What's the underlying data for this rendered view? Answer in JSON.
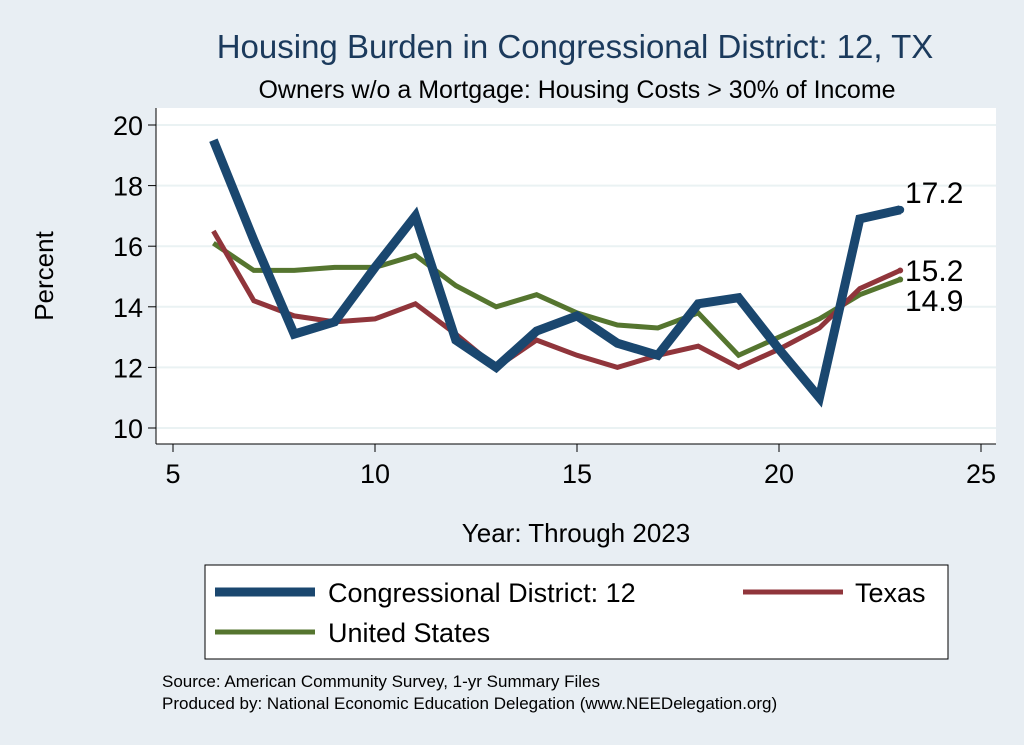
{
  "chart_data": {
    "type": "line",
    "title": "Housing Burden in Congressional District:  12, TX",
    "subtitle": "Owners w/o a Mortgage: Housing Costs > 30% of Income",
    "xlabel": "Year: Through 2023",
    "ylabel": "Percent",
    "xlim": [
      5,
      25
    ],
    "ylim": [
      10,
      20
    ],
    "xticks": [
      5,
      10,
      15,
      20,
      25
    ],
    "yticks": [
      10,
      12,
      14,
      16,
      18,
      20
    ],
    "grid": true,
    "series": [
      {
        "name": "Congressional District:  12",
        "color": "#1a476f",
        "x": [
          6,
          7,
          8,
          9,
          10,
          11,
          12,
          13,
          14,
          15,
          16,
          17,
          18,
          19,
          20,
          21,
          22,
          23
        ],
        "values": [
          19.5,
          16.2,
          13.1,
          13.5,
          15.3,
          17.0,
          12.9,
          12.0,
          13.2,
          13.7,
          12.8,
          12.4,
          14.1,
          14.3,
          12.6,
          11.0,
          16.9,
          17.2
        ],
        "end_label": "17.2"
      },
      {
        "name": "Texas",
        "color": "#90353b",
        "x": [
          6,
          7,
          8,
          9,
          10,
          11,
          12,
          13,
          14,
          15,
          16,
          17,
          18,
          19,
          20,
          21,
          22,
          23
        ],
        "values": [
          16.5,
          14.2,
          13.7,
          13.5,
          13.6,
          14.1,
          13.1,
          12.0,
          12.9,
          12.4,
          12.0,
          12.4,
          12.7,
          12.0,
          12.6,
          13.3,
          14.6,
          15.2
        ],
        "end_label": "15.2"
      },
      {
        "name": "United States",
        "color": "#55752f",
        "x": [
          6,
          7,
          8,
          9,
          10,
          11,
          12,
          13,
          14,
          15,
          16,
          17,
          18,
          19,
          20,
          21,
          22,
          23
        ],
        "values": [
          16.1,
          15.2,
          15.2,
          15.3,
          15.3,
          15.7,
          14.7,
          14.0,
          14.4,
          13.8,
          13.4,
          13.3,
          13.8,
          12.4,
          13.0,
          13.6,
          14.4,
          14.9
        ],
        "end_label": "14.9"
      }
    ],
    "legend": {
      "position": "bottom",
      "entries": [
        "Congressional District:  12",
        "Texas",
        "United States"
      ]
    },
    "notes": [
      "Source: American Community Survey, 1-yr Summary Files",
      "Produced by: National Economic Education Delegation (www.NEEDelegation.org)"
    ]
  }
}
